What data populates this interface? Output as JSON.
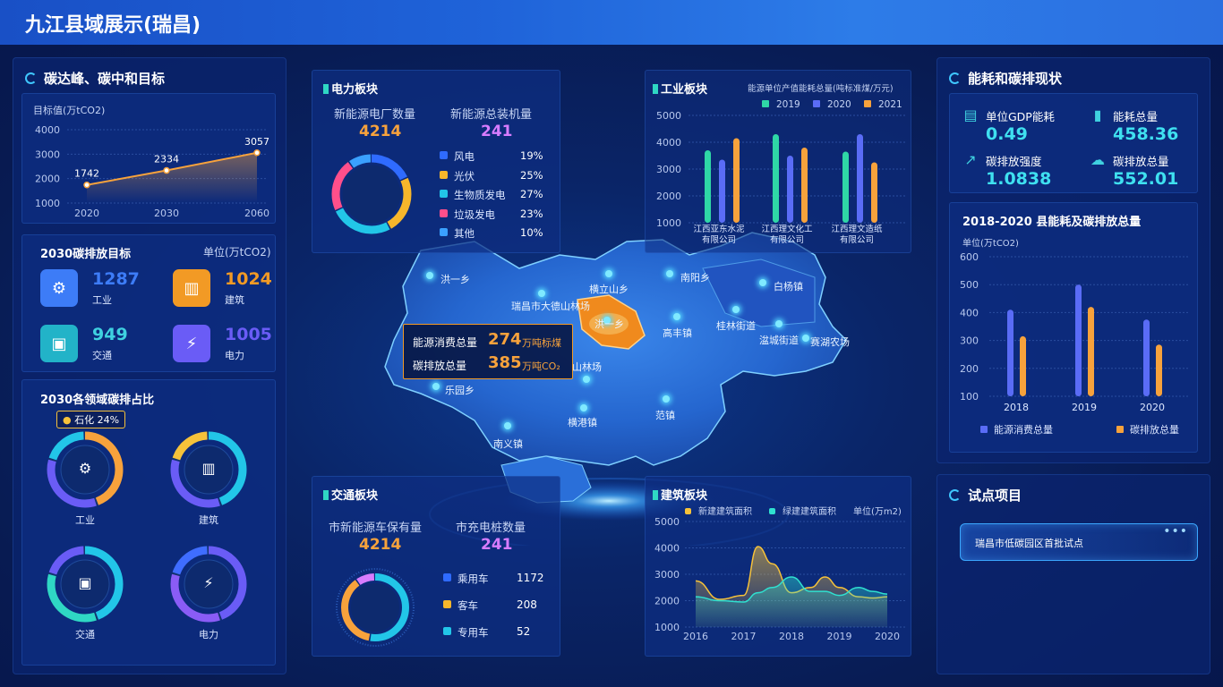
{
  "page_title": "九江县域展示(瑞昌)",
  "left": {
    "peak": {
      "title": "碳达峰、碳中和目标",
      "ylabel": "目标值(万tCO2)",
      "yticks": [
        "4000",
        "3000",
        "2000",
        "1000"
      ]
    },
    "goal2030": {
      "title": "2030碳排放目标",
      "unit": "单位(万tCO2)",
      "items": [
        {
          "value": "1287",
          "label": "工业",
          "color": "#3d7cf7",
          "icon": "gears-icon"
        },
        {
          "value": "1024",
          "label": "建筑",
          "color": "#f29a25",
          "icon": "building-icon"
        },
        {
          "value": "949",
          "label": "交通",
          "color": "#22b3c8",
          "icon": "bus-icon"
        },
        {
          "value": "1005",
          "label": "电力",
          "color": "#6a5cf6",
          "icon": "lightning-icon"
        }
      ]
    },
    "share2030": {
      "title": "2030各领域碳排占比",
      "tooltip_name": "石化",
      "tooltip_value": "24%",
      "rings": [
        {
          "label": "工业",
          "icon": "gears-icon"
        },
        {
          "label": "建筑",
          "icon": "building-icon"
        },
        {
          "label": "交通",
          "icon": "bus-icon"
        },
        {
          "label": "电力",
          "icon": "lightning-icon"
        }
      ]
    }
  },
  "power": {
    "title": "电力板块",
    "stat1_label": "新能源电厂数量",
    "stat1_value": "4214",
    "stat2_label": "新能源总装机量",
    "stat2_value": "241",
    "legend": [
      {
        "name": "风电",
        "pct": "19%",
        "color": "#2f6bff"
      },
      {
        "name": "光伏",
        "pct": "25%",
        "color": "#f7b62b"
      },
      {
        "name": "生物质发电",
        "pct": "27%",
        "color": "#22c6e8"
      },
      {
        "name": "垃圾发电",
        "pct": "23%",
        "color": "#ff4f8b"
      },
      {
        "name": "其他",
        "pct": "10%",
        "color": "#3aa0ff"
      }
    ]
  },
  "industry": {
    "title": "工业板块",
    "subtitle": "能源单位产值能耗总量(吨标准煤/万元)",
    "legend": [
      {
        "name": "2019",
        "color": "#2fd7a6"
      },
      {
        "name": "2020",
        "color": "#5a6cf6"
      },
      {
        "name": "2021",
        "color": "#f7a23c"
      }
    ],
    "yticks": [
      "5000",
      "4000",
      "3000",
      "2000",
      "1000"
    ],
    "companies": [
      "江西亚东水泥有限公司",
      "江西理文化工有限公司",
      "江西理文造纸有限公司"
    ]
  },
  "map": {
    "labels": [
      "洪一乡",
      "瑞昌市大德山林场",
      "横立山乡",
      "南阳乡",
      "白杨镇",
      "高丰镇",
      "桂林街道",
      "湓城街道",
      "赛湖农场",
      "乐园乡",
      "横港镇",
      "范镇",
      "南义镇",
      "洪一乡",
      "山林场"
    ],
    "tooltip": {
      "row1_label": "能源消费总量",
      "row1_value": "274",
      "row1_unit": "万吨标煤",
      "row2_label": "碳排放总量",
      "row2_value": "385",
      "row2_unit": "万吨CO₂"
    }
  },
  "traffic": {
    "title": "交通板块",
    "stat1_label": "市新能源车保有量",
    "stat1_value": "4214",
    "stat2_label": "市充电桩数量",
    "stat2_value": "241",
    "legend": [
      {
        "name": "乘用车",
        "value": "1172",
        "color": "#2f6bff"
      },
      {
        "name": "客车",
        "value": "208",
        "color": "#f7b62b"
      },
      {
        "name": "专用车",
        "value": "52",
        "color": "#22c6e8"
      }
    ]
  },
  "building": {
    "title": "建筑板块",
    "legend1": "新建建筑面积",
    "legend2": "绿建建筑面积",
    "unit": "单位(万m2)",
    "yticks": [
      "5000",
      "4000",
      "3000",
      "2000",
      "1000"
    ]
  },
  "right": {
    "energy": {
      "title": "能耗和碳排现状",
      "kpis": [
        {
          "label": "单位GDP能耗",
          "value": "0.49",
          "icon": "gdp-icon"
        },
        {
          "label": "能耗总量",
          "value": "458.36",
          "icon": "bar-chart-icon"
        },
        {
          "label": "碳排放强度",
          "value": "1.0838",
          "icon": "trend-icon"
        },
        {
          "label": "碳排放总量",
          "value": "552.01",
          "icon": "co2-icon"
        }
      ]
    },
    "chart": {
      "title": "2018-2020 县能耗及碳排放总量",
      "unit": "单位(万tCO2)",
      "yticks": [
        "600",
        "500",
        "400",
        "300",
        "200",
        "100"
      ]
    },
    "pilot": {
      "title": "试点项目",
      "item": "瑞昌市低碳园区首批试点"
    }
  },
  "chart_data": [
    {
      "type": "line",
      "title": "碳达峰、碳中和目标",
      "ylabel": "目标值(万tCO2)",
      "categories": [
        "2020",
        "2030",
        "2060"
      ],
      "values": [
        1742,
        2334,
        3057
      ],
      "ylim": [
        1000,
        4000
      ]
    },
    {
      "type": "pie",
      "title": "电力板块",
      "categories": [
        "风电",
        "光伏",
        "生物质发电",
        "垃圾发电",
        "其他"
      ],
      "values": [
        19,
        25,
        27,
        23,
        10
      ]
    },
    {
      "type": "bar",
      "title": "工业板块",
      "categories": [
        "江西亚东水泥有限公司",
        "江西理文化工有限公司",
        "江西理文造纸有限公司"
      ],
      "series": [
        {
          "name": "2019",
          "values": [
            3700,
            4300,
            3650
          ]
        },
        {
          "name": "2020",
          "values": [
            3350,
            3500,
            4300
          ]
        },
        {
          "name": "2021",
          "values": [
            4150,
            3800,
            3250
          ]
        }
      ],
      "ylim": [
        1000,
        5000
      ]
    },
    {
      "type": "pie",
      "title": "交通板块",
      "categories": [
        "乘用车",
        "客车",
        "专用车"
      ],
      "values": [
        1172,
        208,
        52
      ]
    },
    {
      "type": "area",
      "title": "建筑板块",
      "x": [
        2016,
        2016.5,
        2017,
        2017.3,
        2017.6,
        2018,
        2018.4,
        2018.7,
        2019,
        2019.4,
        2019.7,
        2020
      ],
      "series": [
        {
          "name": "新建建筑面积",
          "values": [
            2750,
            2050,
            2200,
            4050,
            3400,
            2300,
            2500,
            2900,
            2500,
            2150,
            2100,
            2150
          ]
        },
        {
          "name": "绿建建筑面积",
          "values": [
            2150,
            2000,
            1950,
            2300,
            2500,
            2900,
            2350,
            2350,
            2200,
            2500,
            2350,
            2250
          ]
        }
      ],
      "ylim": [
        1000,
        5000
      ]
    },
    {
      "type": "bar",
      "title": "2018-2020 县能耗及碳排放总量",
      "ylabel": "单位(万tCO2)",
      "categories": [
        "2018",
        "2019",
        "2020"
      ],
      "series": [
        {
          "name": "能源消费总量",
          "values": [
            410,
            500,
            375
          ]
        },
        {
          "name": "碳排放总量",
          "values": [
            315,
            420,
            285
          ]
        }
      ],
      "ylim": [
        100,
        600
      ]
    }
  ]
}
